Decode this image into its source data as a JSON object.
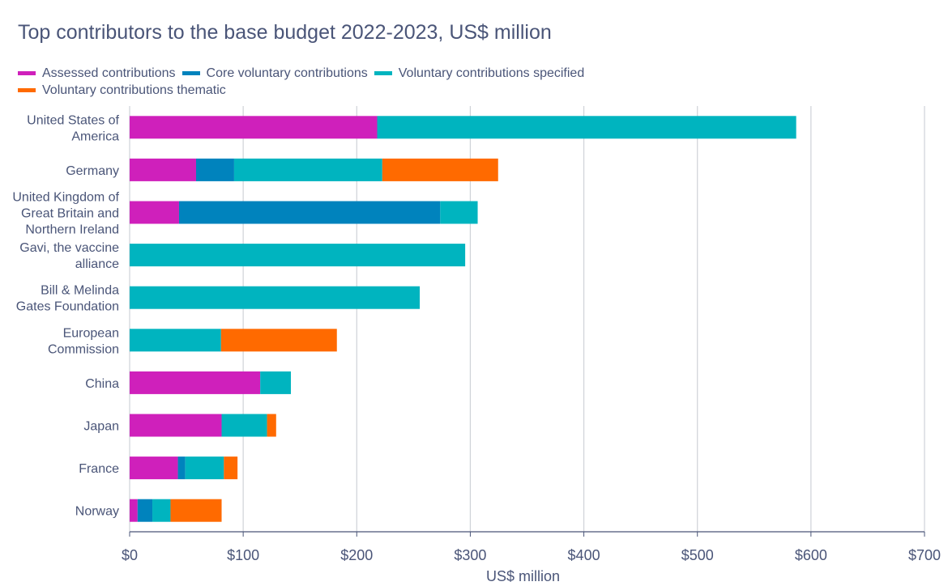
{
  "chart_data": {
    "type": "bar",
    "orientation": "horizontal",
    "stacked": true,
    "title": "Top contributors to the base budget 2022-2023, US$ million",
    "xlabel": "US$ million",
    "ylabel": "",
    "xlim": [
      0,
      700
    ],
    "xticks": [
      0,
      100,
      200,
      300,
      400,
      500,
      600,
      700
    ],
    "xtick_labels": [
      "$0",
      "$100",
      "$200",
      "$300",
      "$400",
      "$500",
      "$600",
      "$700"
    ],
    "grid": "vertical",
    "legend_position": "top-left",
    "categories": [
      [
        "United States of",
        "America"
      ],
      [
        "Germany"
      ],
      [
        "United Kingdom of",
        "Great Britain and",
        "Northern Ireland"
      ],
      [
        "Gavi, the vaccine",
        "alliance"
      ],
      [
        "Bill & Melinda",
        "Gates Foundation"
      ],
      [
        "European",
        "Commission"
      ],
      [
        "China"
      ],
      [
        "Japan"
      ],
      [
        "France"
      ],
      [
        "Norway"
      ]
    ],
    "series": [
      {
        "name": "Assessed contributions",
        "color": "#cf20bb",
        "values": [
          218,
          58.5,
          43.5,
          0,
          0,
          0,
          115,
          81,
          42.5,
          7
        ]
      },
      {
        "name": "Core voluntary contributions",
        "color": "#0083bd",
        "values": [
          0,
          33.5,
          230,
          0,
          0,
          0,
          0,
          0,
          6.5,
          13
        ]
      },
      {
        "name": "Voluntary contributions specified",
        "color": "#00b4bf",
        "values": [
          369,
          130.5,
          33,
          295.5,
          255.5,
          80.5,
          27,
          40,
          34,
          16
        ]
      },
      {
        "name": "Voluntary contributions thematic",
        "color": "#ff6a00",
        "values": [
          0,
          102,
          0,
          0,
          0,
          102,
          0,
          8,
          12,
          45
        ]
      }
    ]
  }
}
